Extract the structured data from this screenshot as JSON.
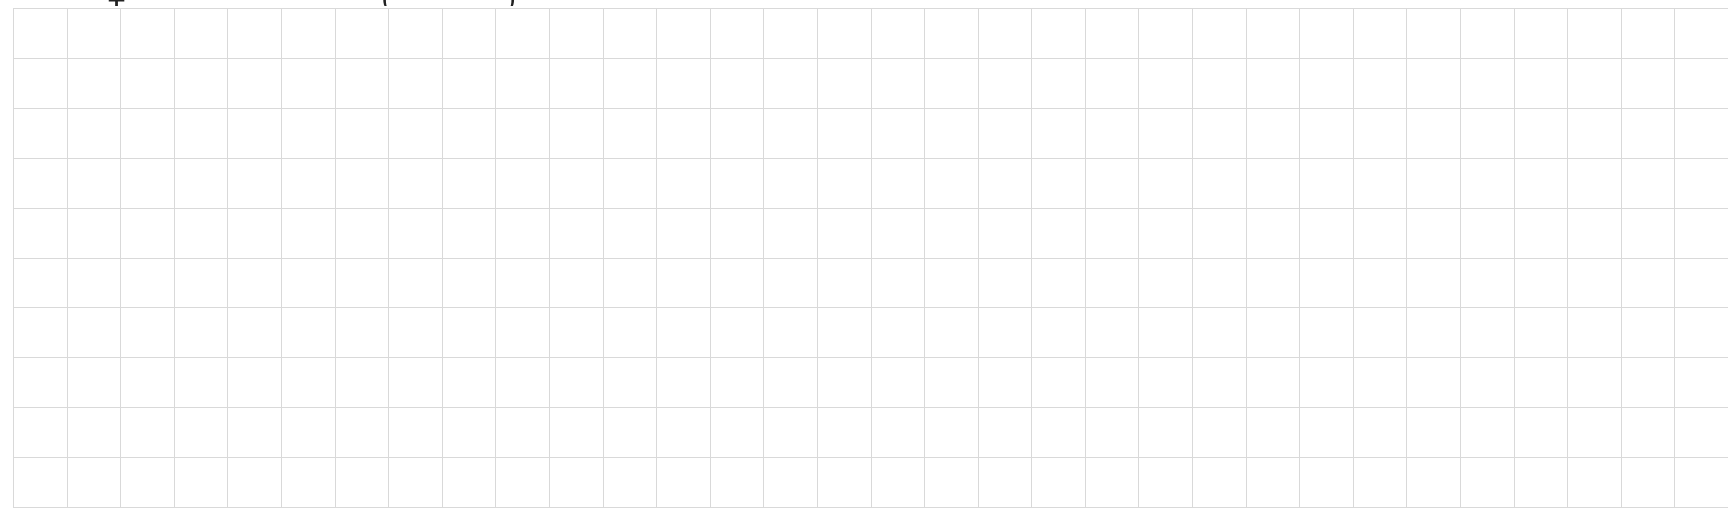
{
  "top_clipped_text": [
    "ⵖ",
    "(",
    ")"
  ],
  "grid": {
    "columns": 32,
    "rows": 10,
    "line_color": "#d9d9d9",
    "background_color": "#ffffff"
  }
}
